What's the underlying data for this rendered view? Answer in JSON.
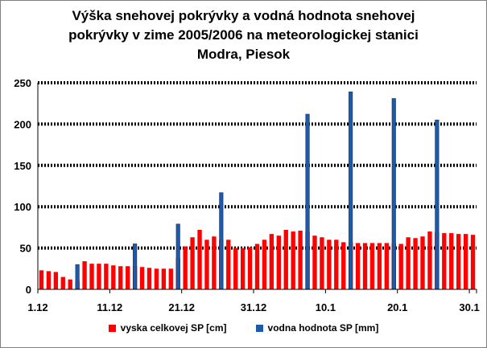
{
  "chart_data": {
    "type": "bar",
    "title_lines": [
      "Výška snehovej pokrývky a vodná hodnota snehovej",
      "pokrývky v zime 2005/2006 na meteorologickej stanici",
      "Modra, Piesok"
    ],
    "x_tick_labels": [
      "1.12",
      "11.12",
      "21.12",
      "31.12",
      "10.1",
      "20.1",
      "30.1"
    ],
    "y_ticks": [
      0,
      50,
      100,
      150,
      200,
      250
    ],
    "ylim": [
      0,
      250
    ],
    "grid": true,
    "legend_position": "bottom",
    "days": 61,
    "series": [
      {
        "name": "vyska celkovej SP [cm]",
        "color": "#ff0000",
        "values": [
          23,
          22,
          21,
          15,
          12,
          10,
          34,
          31,
          31,
          31,
          29,
          28,
          28,
          28,
          27,
          26,
          25,
          25,
          25,
          38,
          52,
          63,
          72,
          60,
          64,
          60,
          60,
          50,
          50,
          51,
          55,
          60,
          67,
          65,
          72,
          70,
          71,
          70,
          65,
          63,
          60,
          60,
          57,
          57,
          56,
          56,
          56,
          56,
          56,
          56,
          55,
          63,
          62,
          64,
          70,
          69,
          68,
          68,
          67,
          67,
          66
        ]
      },
      {
        "name": "vodna hodnota SP [mm]",
        "color": "#1f5aa6",
        "points": [
          {
            "day": 5,
            "value": 30
          },
          {
            "day": 13,
            "value": 55
          },
          {
            "day": 19,
            "value": 79
          },
          {
            "day": 25,
            "value": 117
          },
          {
            "day": 37,
            "value": 212
          },
          {
            "day": 43,
            "value": 239
          },
          {
            "day": 49,
            "value": 231
          },
          {
            "day": 55,
            "value": 205
          }
        ]
      }
    ]
  }
}
